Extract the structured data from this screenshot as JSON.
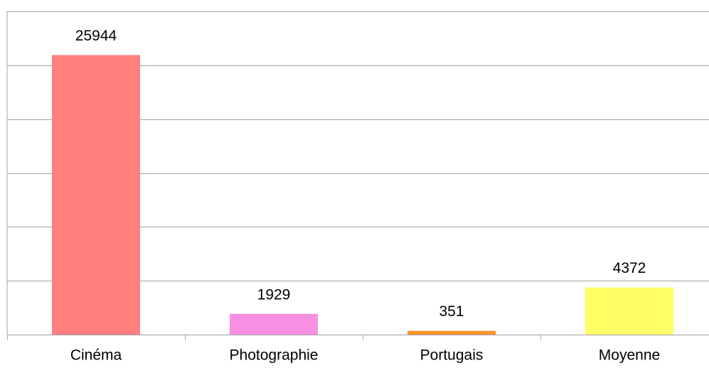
{
  "chart_data": {
    "type": "bar",
    "categories": [
      "Cinéma",
      "Photographie",
      "Portugais",
      "Moyenne"
    ],
    "values": [
      25944,
      1929,
      351,
      4372
    ],
    "colors": [
      "#ff7f7f",
      "#f790e3",
      "#f7962a",
      "#ffff66"
    ],
    "ylim": [
      0,
      30000
    ],
    "yticks": [
      0,
      5000,
      10000,
      15000,
      20000,
      25000,
      30000
    ],
    "grid": true
  }
}
